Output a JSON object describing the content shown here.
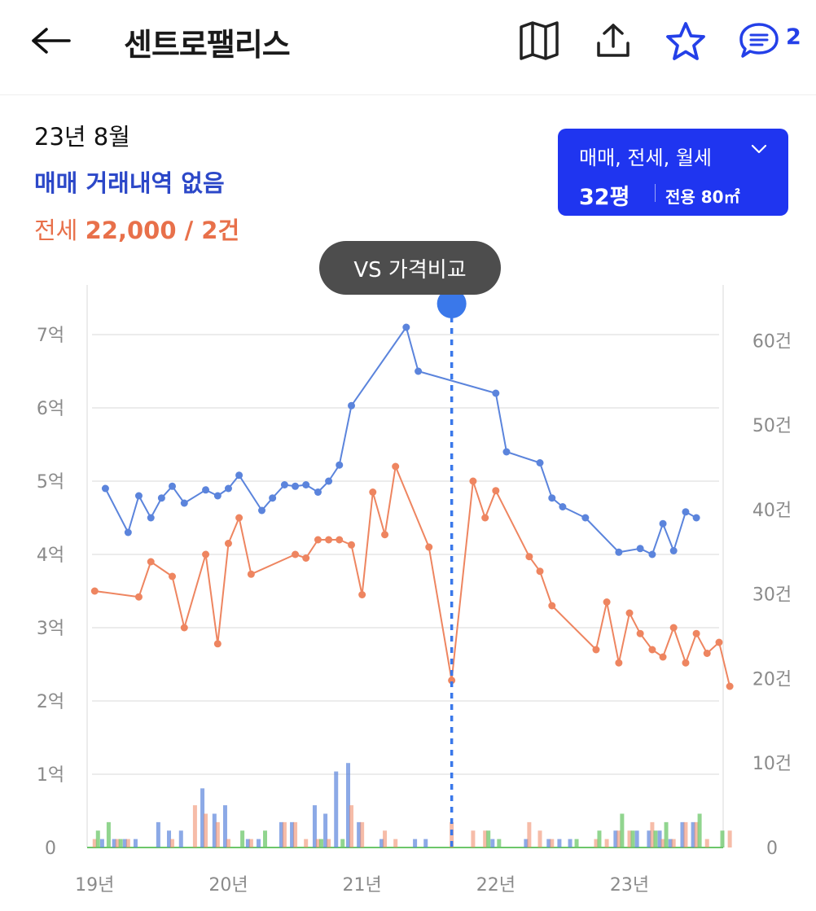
{
  "header": {
    "title": "센트로팰리스",
    "comment_count": "2",
    "icons": [
      "back-arrow-icon",
      "map-icon",
      "share-icon",
      "star-icon",
      "comment-icon"
    ]
  },
  "summary": {
    "date": "23년 8월",
    "sale_text": "매매 거래내역 없음",
    "jeonse_label": "전세",
    "jeonse_value": "22,000 / 2건"
  },
  "filter": {
    "types": "매매, 전세, 월세",
    "size": "32평",
    "area": "전용 80㎡"
  },
  "compare_button": "VS 가격비교",
  "colors": {
    "sale": "#5b84dc",
    "jeonse": "#ee8560",
    "monthly": "#6cc76a",
    "accent": "#1f35f0",
    "cursor": "#3a78ea"
  },
  "chart_data": {
    "type": "line",
    "x_ticks": [
      "19년",
      "20년",
      "21년",
      "22년",
      "23년"
    ],
    "x_tick_values": [
      2019.0,
      2020.0,
      2021.0,
      2022.0,
      2023.0
    ],
    "xlim": [
      2018.98,
      2023.67
    ],
    "y_left_ticks": [
      "0",
      "1억",
      "2억",
      "3억",
      "4억",
      "5억",
      "6억",
      "7억"
    ],
    "y_left_tick_values": [
      0,
      1,
      2,
      3,
      4,
      5,
      6,
      7
    ],
    "y_left_unit": "억원",
    "ylim_left": [
      0,
      7.4
    ],
    "y_right_ticks": [
      "0",
      "10건",
      "20건",
      "30건",
      "40건",
      "50건",
      "60건"
    ],
    "y_right_tick_values": [
      0,
      10,
      20,
      30,
      40,
      50,
      60
    ],
    "ylim_right": [
      0,
      60
    ],
    "cursor_x": 2021.67,
    "grid": true,
    "series": [
      {
        "key": "sale",
        "points": [
          [
            2019.08,
            4.9
          ],
          [
            2019.25,
            4.3
          ],
          [
            2019.33,
            4.8
          ],
          [
            2019.42,
            4.5
          ],
          [
            2019.5,
            4.77
          ],
          [
            2019.58,
            4.93
          ],
          [
            2019.67,
            4.7
          ],
          [
            2019.83,
            4.88
          ],
          [
            2019.92,
            4.8
          ],
          [
            2020.0,
            4.9
          ],
          [
            2020.08,
            5.08
          ],
          [
            2020.25,
            4.6
          ],
          [
            2020.33,
            4.77
          ],
          [
            2020.42,
            4.95
          ],
          [
            2020.5,
            4.93
          ],
          [
            2020.58,
            4.95
          ],
          [
            2020.67,
            4.85
          ],
          [
            2020.75,
            5.0
          ],
          [
            2020.83,
            5.22
          ],
          [
            2020.92,
            6.03
          ],
          [
            2021.33,
            7.1
          ],
          [
            2021.42,
            6.5
          ],
          [
            2022.0,
            6.2
          ],
          [
            2022.08,
            5.4
          ],
          [
            2022.33,
            5.25
          ],
          [
            2022.42,
            4.77
          ],
          [
            2022.5,
            4.65
          ],
          [
            2022.67,
            4.5
          ],
          [
            2022.92,
            4.03
          ],
          [
            2023.08,
            4.08
          ],
          [
            2023.17,
            4.0
          ],
          [
            2023.25,
            4.42
          ],
          [
            2023.33,
            4.05
          ],
          [
            2023.42,
            4.58
          ],
          [
            2023.5,
            4.5
          ]
        ]
      },
      {
        "key": "jeonse",
        "points": [
          [
            2019.0,
            3.5
          ],
          [
            2019.33,
            3.42
          ],
          [
            2019.42,
            3.9
          ],
          [
            2019.58,
            3.7
          ],
          [
            2019.67,
            3.0
          ],
          [
            2019.83,
            4.0
          ],
          [
            2019.92,
            2.78
          ],
          [
            2020.0,
            4.15
          ],
          [
            2020.08,
            4.5
          ],
          [
            2020.17,
            3.73
          ],
          [
            2020.5,
            4.0
          ],
          [
            2020.58,
            3.95
          ],
          [
            2020.67,
            4.2
          ],
          [
            2020.75,
            4.2
          ],
          [
            2020.83,
            4.2
          ],
          [
            2020.92,
            4.13
          ],
          [
            2021.0,
            3.45
          ],
          [
            2021.08,
            4.85
          ],
          [
            2021.17,
            4.27
          ],
          [
            2021.25,
            5.2
          ],
          [
            2021.5,
            4.1
          ],
          [
            2021.67,
            2.28
          ],
          [
            2021.83,
            5.0
          ],
          [
            2021.92,
            4.5
          ],
          [
            2022.0,
            4.87
          ],
          [
            2022.25,
            3.97
          ],
          [
            2022.33,
            3.77
          ],
          [
            2022.42,
            3.3
          ],
          [
            2022.75,
            2.7
          ],
          [
            2022.83,
            3.35
          ],
          [
            2022.92,
            2.52
          ],
          [
            2023.0,
            3.2
          ],
          [
            2023.08,
            2.92
          ],
          [
            2023.17,
            2.7
          ],
          [
            2023.25,
            2.6
          ],
          [
            2023.33,
            3.0
          ],
          [
            2023.42,
            2.52
          ],
          [
            2023.5,
            2.92
          ],
          [
            2023.58,
            2.65
          ],
          [
            2023.67,
            2.8
          ],
          [
            2023.75,
            2.2
          ]
        ]
      }
    ],
    "volume_series": [
      {
        "key": "sale",
        "points": [
          [
            2019.08,
            1
          ],
          [
            2019.17,
            1
          ],
          [
            2019.25,
            1
          ],
          [
            2019.33,
            1
          ],
          [
            2019.5,
            3
          ],
          [
            2019.58,
            2
          ],
          [
            2019.67,
            2
          ],
          [
            2019.83,
            7
          ],
          [
            2019.92,
            4
          ],
          [
            2020.0,
            5
          ],
          [
            2020.17,
            1
          ],
          [
            2020.25,
            1
          ],
          [
            2020.42,
            3
          ],
          [
            2020.5,
            3
          ],
          [
            2020.67,
            5
          ],
          [
            2020.75,
            4
          ],
          [
            2020.83,
            9
          ],
          [
            2020.92,
            10
          ],
          [
            2021.0,
            3
          ],
          [
            2021.17,
            1
          ],
          [
            2021.42,
            1
          ],
          [
            2021.5,
            1
          ],
          [
            2022.0,
            1
          ],
          [
            2022.25,
            1
          ],
          [
            2022.42,
            1
          ],
          [
            2022.5,
            1
          ],
          [
            2022.58,
            1
          ],
          [
            2022.92,
            2
          ],
          [
            2023.08,
            2
          ],
          [
            2023.17,
            2
          ],
          [
            2023.25,
            2
          ],
          [
            2023.33,
            1
          ],
          [
            2023.42,
            3
          ],
          [
            2023.5,
            3
          ]
        ]
      },
      {
        "key": "jeonse",
        "points": [
          [
            2019.0,
            1
          ],
          [
            2019.17,
            1
          ],
          [
            2019.25,
            1
          ],
          [
            2019.58,
            1
          ],
          [
            2019.75,
            5
          ],
          [
            2019.83,
            4
          ],
          [
            2019.92,
            3
          ],
          [
            2020.0,
            1
          ],
          [
            2020.17,
            1
          ],
          [
            2020.42,
            3
          ],
          [
            2020.5,
            3
          ],
          [
            2020.58,
            1
          ],
          [
            2020.67,
            1
          ],
          [
            2020.75,
            1
          ],
          [
            2020.92,
            5
          ],
          [
            2021.0,
            3
          ],
          [
            2021.17,
            2
          ],
          [
            2021.25,
            1
          ],
          [
            2021.67,
            3
          ],
          [
            2021.83,
            2
          ],
          [
            2021.92,
            2
          ],
          [
            2022.25,
            3
          ],
          [
            2022.33,
            2
          ],
          [
            2022.42,
            1
          ],
          [
            2022.75,
            1
          ],
          [
            2022.83,
            1
          ],
          [
            2022.92,
            2
          ],
          [
            2023.0,
            2
          ],
          [
            2023.17,
            3
          ],
          [
            2023.25,
            1
          ],
          [
            2023.33,
            1
          ],
          [
            2023.42,
            3
          ],
          [
            2023.5,
            3
          ],
          [
            2023.58,
            1
          ],
          [
            2023.75,
            2
          ]
        ]
      },
      {
        "key": "monthly",
        "points": [
          [
            2019.0,
            2
          ],
          [
            2019.08,
            3
          ],
          [
            2019.17,
            1
          ],
          [
            2020.08,
            2
          ],
          [
            2020.25,
            2
          ],
          [
            2020.67,
            1
          ],
          [
            2020.83,
            1
          ],
          [
            2021.92,
            2
          ],
          [
            2022.0,
            1
          ],
          [
            2022.58,
            1
          ],
          [
            2022.75,
            2
          ],
          [
            2022.92,
            4
          ],
          [
            2023.0,
            2
          ],
          [
            2023.17,
            2
          ],
          [
            2023.25,
            3
          ],
          [
            2023.5,
            4
          ],
          [
            2023.67,
            2
          ]
        ]
      }
    ]
  }
}
